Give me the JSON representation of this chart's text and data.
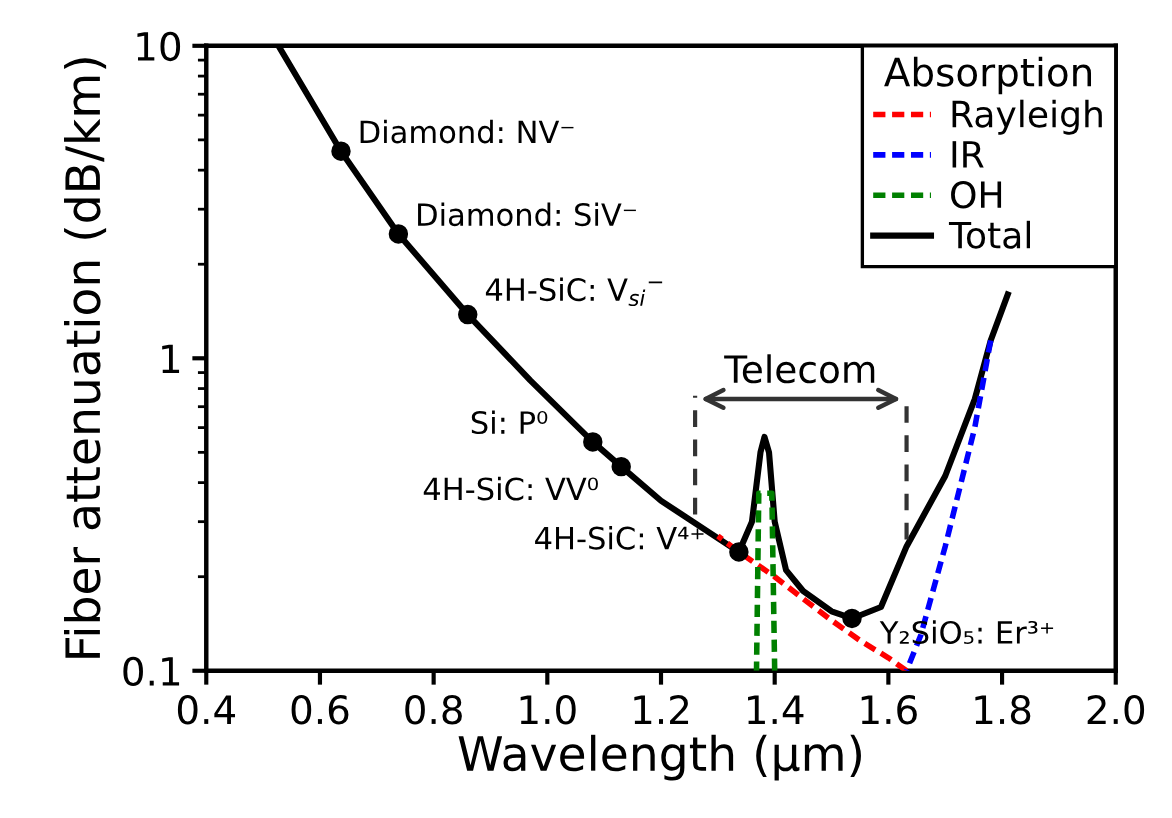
{
  "chart_data": {
    "type": "line",
    "xlabel": "Wavelength (μm)",
    "ylabel": "Fiber attenuation (dB/km)",
    "legend_title": "Absorption",
    "legend": "top right",
    "log": "y",
    "grid": false,
    "line_style": "dashed",
    "xlim": [
      0.4,
      2.0
    ],
    "ylim": [
      0.1,
      10
    ],
    "xticks": [
      0.4,
      0.6,
      0.8,
      {
        "value": 1.0,
        "label": "1.0"
      },
      1.2,
      1.4,
      1.6,
      1.8,
      {
        "value": 2.0,
        "label": "2.0"
      }
    ],
    "yticks": [
      0.1,
      1,
      10
    ],
    "series": [
      {
        "name": "Rayleigh",
        "color": "#ff0000",
        "x": [
          1.3,
          1.337,
          1.4,
          1.45,
          1.5,
          1.55,
          1.6,
          1.632
        ],
        "values": [
          0.27,
          0.24,
          0.2,
          0.17,
          0.145,
          0.125,
          0.11,
          0.1
        ]
      },
      {
        "name": "IR",
        "color": "#0000ff",
        "x": [
          1.632,
          1.657,
          1.7,
          1.752,
          1.78
        ],
        "values": [
          0.1,
          0.13,
          0.25,
          0.6,
          1.14
        ]
      },
      {
        "name": "OH",
        "color": "#008000",
        "x": [
          1.368,
          1.372,
          1.395,
          1.4
        ],
        "values": [
          0.1,
          0.37,
          0.37,
          0.1
        ]
      },
      {
        "name": "Total",
        "color": "#000000",
        "line_style": "solid",
        "x": [
          0.527,
          0.637,
          0.738,
          0.86,
          0.97,
          1.08,
          1.13,
          1.2,
          1.337,
          1.36,
          1.375,
          1.382,
          1.39,
          1.4,
          1.42,
          1.45,
          1.5,
          1.536,
          1.587,
          1.632,
          1.7,
          1.752,
          1.78,
          1.81
        ],
        "values": [
          10,
          4.6,
          2.5,
          1.38,
          0.85,
          0.54,
          0.45,
          0.35,
          0.24,
          0.3,
          0.5,
          0.56,
          0.5,
          0.3,
          0.21,
          0.18,
          0.155,
          0.147,
          0.16,
          0.25,
          0.42,
          0.74,
          1.14,
          1.6
        ]
      },
      {
        "type": "scatter",
        "marker": "circle",
        "color": "#000000",
        "x": [
          0.637,
          0.738,
          0.86,
          1.08,
          1.13,
          1.337,
          1.536
        ],
        "values": [
          4.6,
          2.5,
          1.38,
          0.54,
          0.45,
          0.24,
          0.147
        ]
      }
    ],
    "ref_lines": [
      {
        "axis": "x",
        "value": 1.26,
        "color": "#333333",
        "line_style": "dashed"
      },
      {
        "axis": "x",
        "value": 1.632,
        "color": "#333333",
        "line_style": "dashed"
      }
    ],
    "annotations": [
      {
        "text": "Diamond: NV⁻",
        "x": 0.637,
        "y": 4.6
      },
      {
        "text": "Diamond: SiV⁻",
        "x": 0.738,
        "y": 2.5
      },
      {
        "text": "4H-SiC: V$_{si}$$^{−}$",
        "x": 0.86,
        "y": 1.38
      },
      {
        "text": "Si: P⁰",
        "x": 1.08,
        "y": 0.54
      },
      {
        "text": "4H-SiC: VV⁰",
        "x": 1.13,
        "y": 0.45
      },
      {
        "text": "4H-SiC: V⁴⁺",
        "x": 1.337,
        "y": 0.24
      },
      {
        "text": "Y₂SiO₅: Er³⁺",
        "x": 1.536,
        "y": 0.147
      },
      "Telecom"
    ]
  }
}
